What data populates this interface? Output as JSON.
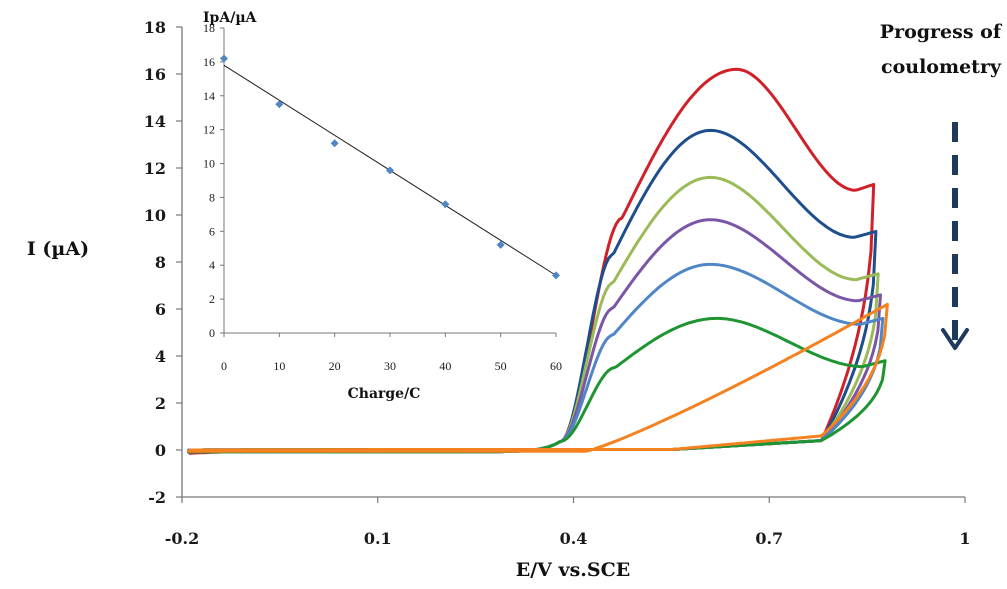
{
  "chart_data": [
    {
      "type": "line",
      "xlabel": "E/V vs.SCE",
      "ylabel": "I (µA)",
      "xlim": [
        -0.2,
        1
      ],
      "ylim": [
        -2,
        18
      ],
      "xticks": [
        "-0.2",
        "0.1",
        "0.4",
        "0.7",
        "1"
      ],
      "yticks": [
        "-2",
        "0",
        "2",
        "4",
        "6",
        "8",
        "10",
        "12",
        "14",
        "16",
        "18"
      ],
      "grid": false,
      "annotation": "Progress of coulometry",
      "series": [
        {
          "color": "#d0202a",
          "peak_current": 16.2,
          "peak_potential": 0.65,
          "switch_current": 11.3
        },
        {
          "color": "#1f4e8c",
          "peak_current": 13.6,
          "peak_potential": 0.61,
          "switch_current": 9.3
        },
        {
          "color": "#9bbb59",
          "peak_current": 11.6,
          "peak_potential": 0.61,
          "switch_current": 7.5
        },
        {
          "color": "#7b56a6",
          "peak_current": 9.8,
          "peak_potential": 0.61,
          "switch_current": 6.6
        },
        {
          "color": "#4f86c6",
          "peak_current": 7.9,
          "peak_potential": 0.61,
          "switch_current": 5.6
        },
        {
          "color": "#1e9432",
          "peak_current": 5.6,
          "peak_potential": 0.62,
          "switch_current": 3.8
        },
        {
          "color": "#f58220",
          "peak_current": 6.2,
          "peak_potential": 0.86,
          "switch_current": 6.2
        }
      ]
    },
    {
      "type": "scatter",
      "title": "IpA/µA",
      "xlabel": "Charge/C",
      "ylabel": "IpA/µA",
      "xlim": [
        0,
        60
      ],
      "ylim": [
        0,
        18
      ],
      "xticks": [
        "0",
        "10",
        "20",
        "30",
        "40",
        "50",
        "60"
      ],
      "yticks": [
        "0",
        "2",
        "4",
        "6",
        "8",
        "10",
        "12",
        "14",
        "16",
        "18"
      ],
      "points": [
        {
          "x": 0,
          "y": 16.2
        },
        {
          "x": 10,
          "y": 13.5
        },
        {
          "x": 20,
          "y": 11.2
        },
        {
          "x": 30,
          "y": 9.6
        },
        {
          "x": 40,
          "y": 7.6
        },
        {
          "x": 50,
          "y": 5.2
        },
        {
          "x": 60,
          "y": 3.4
        }
      ],
      "trendline": {
        "x": [
          0,
          60
        ],
        "y": [
          15.8,
          3.4
        ]
      },
      "marker_color": "#4f86c6"
    }
  ]
}
